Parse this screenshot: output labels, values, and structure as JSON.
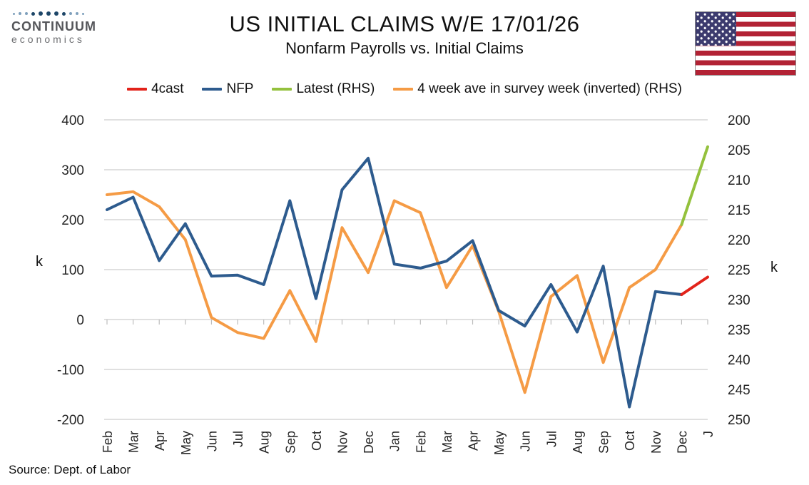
{
  "header": {
    "brand_name": "CONTINUUM",
    "brand_sub": "economics",
    "title": "US INITIAL CLAIMS W/E 17/01/26",
    "subtitle": "Nonfarm Payrolls vs. Initial Claims"
  },
  "legend": [
    {
      "label": "4cast",
      "color": "#E2231A"
    },
    {
      "label": "NFP",
      "color": "#2D5B8E"
    },
    {
      "label": "Latest (RHS)",
      "color": "#94C13D"
    },
    {
      "label": "4 week ave in survey week (inverted) (RHS)",
      "color": "#F59B45"
    }
  ],
  "chart_data": {
    "type": "line",
    "title": "US INITIAL CLAIMS W/E 17/01/26",
    "subtitle": "Nonfarm Payrolls vs. Initial Claims",
    "categories": [
      "Feb",
      "Mar",
      "Apr",
      "May",
      "Jun",
      "Jul",
      "Aug",
      "Sep",
      "Oct",
      "Nov",
      "Dec",
      "Jan",
      "Feb",
      "Mar",
      "Apr",
      "May",
      "Jun",
      "Jul",
      "Aug",
      "Sep",
      "Oct",
      "Nov",
      "Dec",
      "J"
    ],
    "left_axis": {
      "unit": "k",
      "range": [
        -200,
        400
      ],
      "ticks": [
        400,
        300,
        200,
        100,
        0,
        -100,
        -200
      ]
    },
    "right_axis": {
      "unit": "k",
      "range": [
        200,
        250
      ],
      "inverted": true,
      "ticks": [
        200,
        205,
        210,
        215,
        220,
        225,
        230,
        235,
        240,
        245,
        250
      ]
    },
    "grid": "horizontal",
    "legend_position": "top",
    "series": [
      {
        "id": "claims-4wk-ave",
        "name": "4 week ave in survey week (inverted) (RHS)",
        "axis": "right",
        "color": "#F59B45",
        "values": [
          212.5,
          212,
          214.5,
          220,
          233,
          235.5,
          236.5,
          228.5,
          237,
          218,
          225.5,
          213.5,
          215.5,
          228,
          221,
          232,
          245.5,
          229.5,
          226,
          240.5,
          228,
          225,
          217.5,
          null
        ]
      },
      {
        "id": "latest",
        "name": "Latest (RHS)",
        "axis": "right",
        "color": "#94C13D",
        "values": [
          null,
          null,
          null,
          null,
          null,
          null,
          null,
          null,
          null,
          null,
          null,
          null,
          null,
          null,
          null,
          null,
          null,
          null,
          null,
          null,
          null,
          null,
          217.5,
          204.5
        ]
      },
      {
        "id": "nfp",
        "name": "NFP",
        "axis": "left",
        "color": "#2D5B8E",
        "values": [
          220,
          245,
          118,
          192,
          87,
          89,
          70,
          238,
          42,
          260,
          323,
          111,
          103,
          117,
          158,
          18,
          -13,
          70,
          -25,
          107,
          -175,
          56,
          50,
          null
        ]
      },
      {
        "id": "fourcast",
        "name": "4cast",
        "axis": "left",
        "color": "#E2231A",
        "values": [
          null,
          null,
          null,
          null,
          null,
          null,
          null,
          null,
          null,
          null,
          null,
          null,
          null,
          null,
          null,
          null,
          null,
          null,
          null,
          null,
          null,
          null,
          50,
          85
        ]
      }
    ]
  },
  "footer": {
    "source": "Source: Dept. of Labor"
  }
}
